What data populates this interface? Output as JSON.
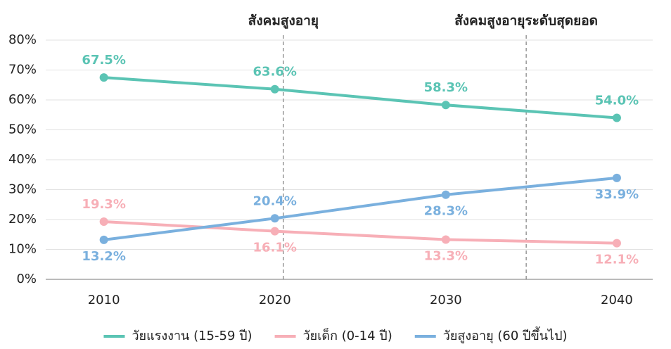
{
  "chart_data": {
    "type": "line",
    "x": [
      2010,
      2020,
      2030,
      2040
    ],
    "xlim": [
      2006.6,
      2042.1
    ],
    "xticks": [
      2010,
      2020,
      2030,
      2040
    ],
    "ylim": [
      0,
      80
    ],
    "yticks": [
      {
        "value": 0,
        "label": "0%"
      },
      {
        "value": 10,
        "label": "10%"
      },
      {
        "value": 20,
        "label": "20%"
      },
      {
        "value": 30,
        "label": "30%"
      },
      {
        "value": 40,
        "label": "40%"
      },
      {
        "value": 50,
        "label": "50%"
      },
      {
        "value": 60,
        "label": "60%"
      },
      {
        "value": 70,
        "label": "70%"
      },
      {
        "value": 80,
        "label": "80%"
      }
    ],
    "grid": true,
    "legend": "bottom",
    "series": [
      {
        "name": "วัยแรงงาน (15-59 ปี)",
        "color": "#5bc4b4",
        "values": [
          67.5,
          63.6,
          58.3,
          54.0
        ],
        "value_labels": [
          "67.5%",
          "63.6%",
          "58.3%",
          "54.0%"
        ]
      },
      {
        "name": "วัยเด็ก (0-14 ปี)",
        "color": "#f7afb7",
        "values": [
          19.3,
          16.1,
          13.3,
          12.1
        ],
        "value_labels": [
          "19.3%",
          "16.1%",
          "13.3%",
          "12.1%"
        ]
      },
      {
        "name": "วัยสูงอายุ (60 ปีขึ้นไป)",
        "color": "#7ab0de",
        "values": [
          13.2,
          20.4,
          28.3,
          33.9
        ],
        "value_labels": [
          "13.2%",
          "20.4%",
          "28.3%",
          "33.9%"
        ]
      }
    ],
    "annotations": [
      {
        "text": "สังคมสูงอายุ",
        "x": 2020.5
      },
      {
        "text": "สังคมสูงอายุระดับสุดยอด",
        "x": 2034.7
      }
    ]
  }
}
